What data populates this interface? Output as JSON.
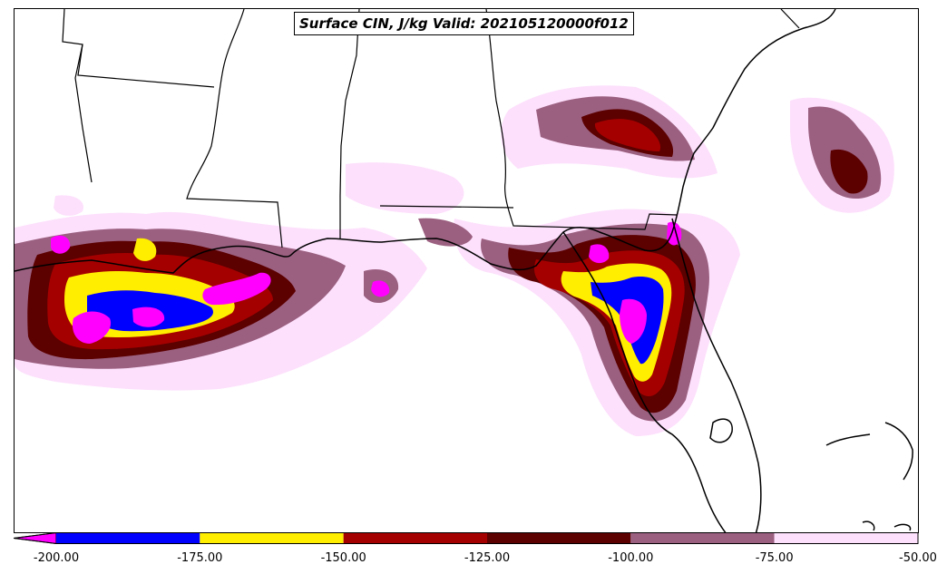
{
  "title": "Surface CIN, J/kg Valid: 202105120000f012",
  "colorbar": {
    "extend": "min",
    "underflow_color": "#ff00ff",
    "bins": [
      {
        "from": -200,
        "to": -175,
        "color": "#0000ff"
      },
      {
        "from": -175,
        "to": -150,
        "color": "#ffee00"
      },
      {
        "from": -150,
        "to": -125,
        "color": "#a50000"
      },
      {
        "from": -125,
        "to": -100,
        "color": "#5c0000"
      },
      {
        "from": -100,
        "to": -75,
        "color": "#9b6080"
      },
      {
        "from": -75,
        "to": -50,
        "color": "#fde0fc"
      }
    ],
    "tick_labels": [
      "-200.00",
      "-175.00",
      "-150.00",
      "-125.00",
      "-100.00",
      "-75.00",
      "-50.00"
    ]
  },
  "map": {
    "field": "Surface CIN",
    "units": "J/kg",
    "region": "US Gulf Coast",
    "colors": {
      "coast_line": "#000000",
      "state_line": "#000000"
    }
  }
}
